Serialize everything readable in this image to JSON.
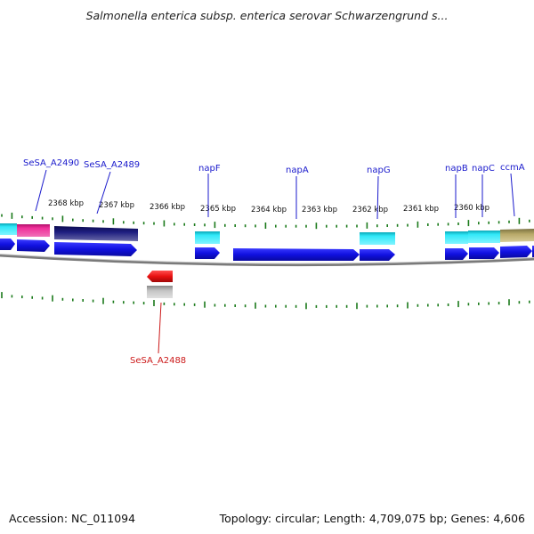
{
  "title": "Salmonella enterica subsp. enterica serovar Schwarzengrund s...",
  "footer": {
    "accession": "Accession: NC_011094",
    "summary": "Topology: circular; Length: 4,709,075 bp; Genes: 4,606"
  },
  "scale_labels": [
    "2368 kbp",
    "2367 kbp",
    "2366 kbp",
    "2365 kbp",
    "2364 kbp",
    "2363 kbp",
    "2362 kbp",
    "2361 kbp",
    "2360 kbp"
  ],
  "genes_forward": [
    "SeSA_A2490",
    "SeSA_A2489",
    "napF",
    "napA",
    "napG",
    "napB",
    "napC",
    "ccmA"
  ],
  "genes_reverse": [
    "SeSA_A2488"
  ],
  "colors": {
    "cds": "#1010e0",
    "cyan": "#20d8e8",
    "magenta": "#e0208a",
    "navy": "#1a1a6e",
    "olive": "#b0a060",
    "red": "#e81010",
    "gray": "#b8b8b8",
    "tick": "#1a7a1a",
    "backbone": "#808080",
    "top_label": "#1a1acc",
    "bottom_label": "#cc1a1a"
  }
}
